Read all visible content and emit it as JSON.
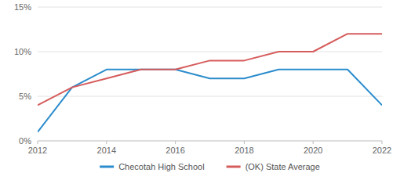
{
  "chart_data": {
    "type": "line",
    "x": [
      2012,
      2013,
      2014,
      2015,
      2016,
      2017,
      2018,
      2019,
      2020,
      2021,
      2022
    ],
    "series": [
      {
        "name": "Checotah High School",
        "color": "#2b8ccc",
        "values": [
          1,
          6,
          8,
          8,
          8,
          7,
          7,
          8,
          8,
          8,
          4
        ]
      },
      {
        "name": "(OK) State Average",
        "color": "#d65c5c",
        "values": [
          4,
          6,
          7,
          8,
          8,
          9,
          9,
          10,
          10,
          12,
          12
        ]
      }
    ],
    "xlim": [
      2012,
      2022
    ],
    "xticks": [
      2012,
      2014,
      2016,
      2018,
      2020,
      2022
    ],
    "ylim": [
      0,
      15
    ],
    "yticks": [
      {
        "value": 0,
        "label": "0%"
      },
      {
        "value": 5,
        "label": "5%"
      },
      {
        "value": 10,
        "label": "10%"
      },
      {
        "value": 15,
        "label": "15%"
      }
    ],
    "grid": true,
    "legend": "bottom"
  }
}
